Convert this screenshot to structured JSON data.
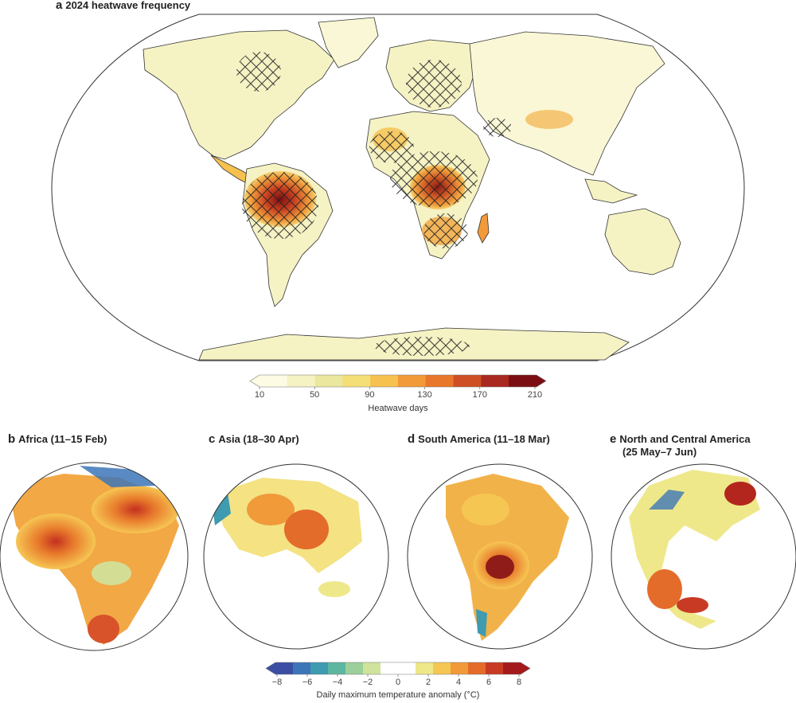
{
  "panel_a": {
    "letter": "a",
    "title": "2024 heatwave frequency"
  },
  "colorbar_a": {
    "ticks": [
      "10",
      "50",
      "90",
      "130",
      "170",
      "210"
    ],
    "label": "Heatwave days",
    "colors": [
      "#fdfbe3",
      "#f5f2c4",
      "#ebe79f",
      "#f3df76",
      "#f6c14f",
      "#f29a39",
      "#e9772b",
      "#cf4f24",
      "#a9281f",
      "#7a0e12"
    ]
  },
  "panels": [
    {
      "letter": "b",
      "title": "Africa (11–15 Feb)"
    },
    {
      "letter": "c",
      "title": "Asia (18–30 Apr)"
    },
    {
      "letter": "d",
      "title": "South America (11–18 Mar)"
    },
    {
      "letter": "e",
      "title": "North and Central America",
      "title_line2": "(25 May–7 Jun)"
    }
  ],
  "colorbar_b": {
    "ticks": [
      "−8",
      "−6",
      "−4",
      "−2",
      "0",
      "2",
      "4",
      "6",
      "8"
    ],
    "label": "Daily maximum temperature anomaly (°C)",
    "colors": [
      "#3b4ea3",
      "#3d76b8",
      "#3e9bb0",
      "#5db6a0",
      "#9ccf9a",
      "#cfe39c",
      "#ffffff",
      "#ffffff",
      "#eee88a",
      "#f6c653",
      "#f09a3a",
      "#e46c2a",
      "#c93a25",
      "#a41a1c"
    ]
  },
  "icons": {
    "hatch": "hatch-pattern"
  }
}
